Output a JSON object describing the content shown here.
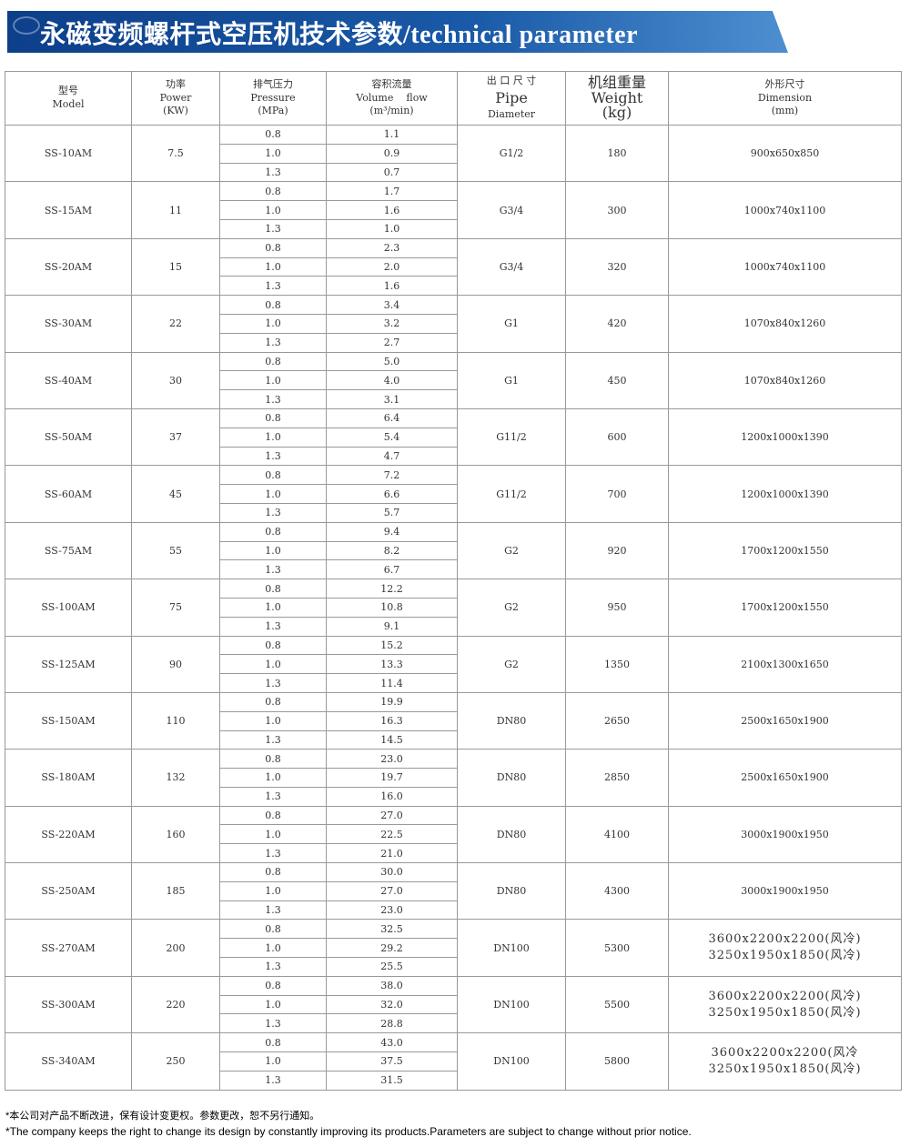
{
  "title": "永磁变频螺杆式空压机技术参数/technical parameter",
  "headers": {
    "model": [
      "型号",
      "Model"
    ],
    "power": [
      "功率",
      "Power",
      "(KW)"
    ],
    "pressure": [
      "排气压力",
      "Pressure",
      "(MPa)"
    ],
    "flow": [
      "容积流量",
      "Volume    flow",
      "(m³/min)"
    ],
    "pipe": [
      "出 口 尺 寸",
      "Pipe",
      "Diameter"
    ],
    "weight": [
      "机组重量",
      "Weight",
      "(kg)"
    ],
    "dimension": [
      "外形尺寸",
      "Dimension",
      "(mm)"
    ]
  },
  "rows": [
    {
      "model": "SS-10AM",
      "power": "7.5",
      "pressure": [
        "0.8",
        "1.0",
        "1.3"
      ],
      "flow": [
        "1.1",
        "0.9",
        "0.7"
      ],
      "pipe": "G1/2",
      "weight": "180",
      "dimension": [
        "900x650x850"
      ]
    },
    {
      "model": "SS-15AM",
      "power": "11",
      "pressure": [
        "0.8",
        "1.0",
        "1.3"
      ],
      "flow": [
        "1.7",
        "1.6",
        "1.0"
      ],
      "pipe": "G3/4",
      "weight": "300",
      "dimension": [
        "1000x740x1100"
      ]
    },
    {
      "model": "SS-20AM",
      "power": "15",
      "pressure": [
        "0.8",
        "1.0",
        "1.3"
      ],
      "flow": [
        "2.3",
        "2.0",
        "1.6"
      ],
      "pipe": "G3/4",
      "weight": "320",
      "dimension": [
        "1000x740x1100"
      ]
    },
    {
      "model": "SS-30AM",
      "power": "22",
      "pressure": [
        "0.8",
        "1.0",
        "1.3"
      ],
      "flow": [
        "3.4",
        "3.2",
        "2.7"
      ],
      "pipe": "G1",
      "weight": "420",
      "dimension": [
        "1070x840x1260"
      ]
    },
    {
      "model": "SS-40AM",
      "power": "30",
      "pressure": [
        "0.8",
        "1.0",
        "1.3"
      ],
      "flow": [
        "5.0",
        "4.0",
        "3.1"
      ],
      "pipe": "G1",
      "weight": "450",
      "dimension": [
        "1070x840x1260"
      ]
    },
    {
      "model": "SS-50AM",
      "power": "37",
      "pressure": [
        "0.8",
        "1.0",
        "1.3"
      ],
      "flow": [
        "6.4",
        "5.4",
        "4.7"
      ],
      "pipe": "G11/2",
      "weight": "600",
      "dimension": [
        "1200x1000x1390"
      ]
    },
    {
      "model": "SS-60AM",
      "power": "45",
      "pressure": [
        "0.8",
        "1.0",
        "1.3"
      ],
      "flow": [
        "7.2",
        "6.6",
        "5.7"
      ],
      "pipe": "G11/2",
      "weight": "700",
      "dimension": [
        "1200x1000x1390"
      ]
    },
    {
      "model": "SS-75AM",
      "power": "55",
      "pressure": [
        "0.8",
        "1.0",
        "1.3"
      ],
      "flow": [
        "9.4",
        "8.2",
        "6.7"
      ],
      "pipe": "G2",
      "weight": "920",
      "dimension": [
        "1700x1200x1550"
      ]
    },
    {
      "model": "SS-100AM",
      "power": "75",
      "pressure": [
        "0.8",
        "1.0",
        "1.3"
      ],
      "flow": [
        "12.2",
        "10.8",
        "9.1"
      ],
      "pipe": "G2",
      "weight": "950",
      "dimension": [
        "1700x1200x1550"
      ]
    },
    {
      "model": "SS-125AM",
      "power": "90",
      "pressure": [
        "0.8",
        "1.0",
        "1.3"
      ],
      "flow": [
        "15.2",
        "13.3",
        "11.4"
      ],
      "pipe": "G2",
      "weight": "1350",
      "dimension": [
        "2100x1300x1650"
      ]
    },
    {
      "model": "SS-150AM",
      "power": "110",
      "pressure": [
        "0.8",
        "1.0",
        "1.3"
      ],
      "flow": [
        "19.9",
        "16.3",
        "14.5"
      ],
      "pipe": "DN80",
      "weight": "2650",
      "dimension": [
        "2500x1650x1900"
      ]
    },
    {
      "model": "SS-180AM",
      "power": "132",
      "pressure": [
        "0.8",
        "1.0",
        "1.3"
      ],
      "flow": [
        "23.0",
        "19.7",
        "16.0"
      ],
      "pipe": "DN80",
      "weight": "2850",
      "dimension": [
        "2500x1650x1900"
      ]
    },
    {
      "model": "SS-220AM",
      "power": "160",
      "pressure": [
        "0.8",
        "1.0",
        "1.3"
      ],
      "flow": [
        "27.0",
        "22.5",
        "21.0"
      ],
      "pipe": "DN80",
      "weight": "4100",
      "dimension": [
        "3000x1900x1950"
      ]
    },
    {
      "model": "SS-250AM",
      "power": "185",
      "pressure": [
        "0.8",
        "1.0",
        "1.3"
      ],
      "flow": [
        "30.0",
        "27.0",
        "23.0"
      ],
      "pipe": "DN80",
      "weight": "4300",
      "dimension": [
        "3000x1900x1950"
      ]
    },
    {
      "model": "SS-270AM",
      "power": "200",
      "pressure": [
        "0.8",
        "1.0",
        "1.3"
      ],
      "flow": [
        "32.5",
        "29.2",
        "25.5"
      ],
      "pipe": "DN100",
      "weight": "5300",
      "dimension": [
        "3600x2200x2200(风冷)",
        "3250x1950x1850(风冷)"
      ]
    },
    {
      "model": "SS-300AM",
      "power": "220",
      "pressure": [
        "0.8",
        "1.0",
        "1.3"
      ],
      "flow": [
        "38.0",
        "32.0",
        "28.8"
      ],
      "pipe": "DN100",
      "weight": "5500",
      "dimension": [
        "3600x2200x2200(风冷)",
        "3250x1950x1850(风冷)"
      ]
    },
    {
      "model": "SS-340AM",
      "power": "250",
      "pressure": [
        "0.8",
        "1.0",
        "1.3"
      ],
      "flow": [
        "43.0",
        "37.5",
        "31.5"
      ],
      "pipe": "DN100",
      "weight": "5800",
      "dimension": [
        "3600x2200x2200(风冷",
        "3250x1950x1850(风冷)"
      ]
    }
  ],
  "notes": [
    "*本公司对产品不断改进，保有设计变更权。参数更改，恕不另行通知。",
    "*The company keeps the right to change its design by constantly improving its products.Parameters are subject to change without prior notice."
  ]
}
